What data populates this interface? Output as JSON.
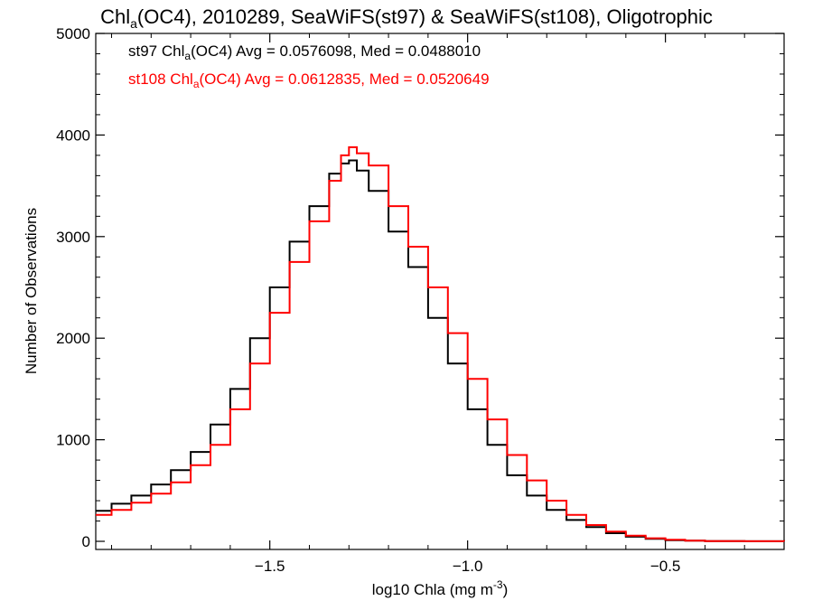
{
  "chart_data": {
    "type": "line",
    "title": {
      "prefix": "Chl",
      "sub": "a",
      "rest": "(OC4), 2010289, SeaWiFS(st97) & SeaWiFS(st108), Oligotrophic"
    },
    "xlabel": {
      "text": "log10 Chla (mg m",
      "sup": "-3",
      "suffix": ")"
    },
    "ylabel": "Number of Observations",
    "xlim": [
      -1.94,
      -0.2
    ],
    "ylim": [
      -80,
      5000
    ],
    "xticks": [
      {
        "value": -1.5,
        "label": "−1.5"
      },
      {
        "value": -1.0,
        "label": "−1.0"
      },
      {
        "value": -0.5,
        "label": "−0.5"
      }
    ],
    "yticks": [
      {
        "value": 0,
        "label": "0"
      },
      {
        "value": 1000,
        "label": "1000"
      },
      {
        "value": 2000,
        "label": "2000"
      },
      {
        "value": 3000,
        "label": "3000"
      },
      {
        "value": 4000,
        "label": "4000"
      },
      {
        "value": 5000,
        "label": "5000"
      }
    ],
    "grid": false,
    "line_style": "step",
    "annotations": [
      {
        "series": "st97",
        "prefix": "st97 Chl",
        "sub": "a",
        "rest": "(OC4) Avg = 0.0576098, Med = 0.0488010",
        "color": "#000000"
      },
      {
        "series": "st108",
        "prefix": "st108 Chl",
        "sub": "a",
        "rest": "(OC4) Avg = 0.0612835, Med = 0.0520649",
        "color": "#ff0000"
      }
    ],
    "series": [
      {
        "name": "st97",
        "color": "#000000",
        "x": [
          -1.94,
          -1.9,
          -1.85,
          -1.8,
          -1.75,
          -1.7,
          -1.65,
          -1.6,
          -1.55,
          -1.5,
          -1.45,
          -1.4,
          -1.35,
          -1.32,
          -1.3,
          -1.28,
          -1.25,
          -1.2,
          -1.15,
          -1.1,
          -1.05,
          -1.0,
          -0.95,
          -0.9,
          -0.85,
          -0.8,
          -0.75,
          -0.7,
          -0.65,
          -0.6,
          -0.55,
          -0.5,
          -0.45,
          -0.4,
          -0.3,
          -0.2
        ],
        "y": [
          300,
          370,
          450,
          560,
          700,
          880,
          1150,
          1500,
          2000,
          2500,
          2950,
          3300,
          3620,
          3720,
          3750,
          3650,
          3450,
          3050,
          2700,
          2200,
          1750,
          1300,
          950,
          650,
          450,
          310,
          210,
          140,
          80,
          45,
          25,
          12,
          6,
          3,
          1,
          0
        ]
      },
      {
        "name": "st108",
        "color": "#ff0000",
        "x": [
          -1.94,
          -1.9,
          -1.85,
          -1.8,
          -1.75,
          -1.7,
          -1.65,
          -1.6,
          -1.55,
          -1.5,
          -1.45,
          -1.4,
          -1.35,
          -1.32,
          -1.3,
          -1.28,
          -1.25,
          -1.2,
          -1.15,
          -1.1,
          -1.05,
          -1.0,
          -0.95,
          -0.9,
          -0.85,
          -0.8,
          -0.75,
          -0.7,
          -0.65,
          -0.6,
          -0.55,
          -0.5,
          -0.45,
          -0.4,
          -0.3,
          -0.2
        ],
        "y": [
          260,
          310,
          380,
          470,
          580,
          750,
          950,
          1300,
          1750,
          2250,
          2750,
          3150,
          3550,
          3800,
          3880,
          3820,
          3700,
          3300,
          2900,
          2500,
          2050,
          1600,
          1200,
          850,
          600,
          400,
          260,
          160,
          95,
          55,
          30,
          15,
          7,
          3,
          1,
          0
        ]
      }
    ]
  }
}
